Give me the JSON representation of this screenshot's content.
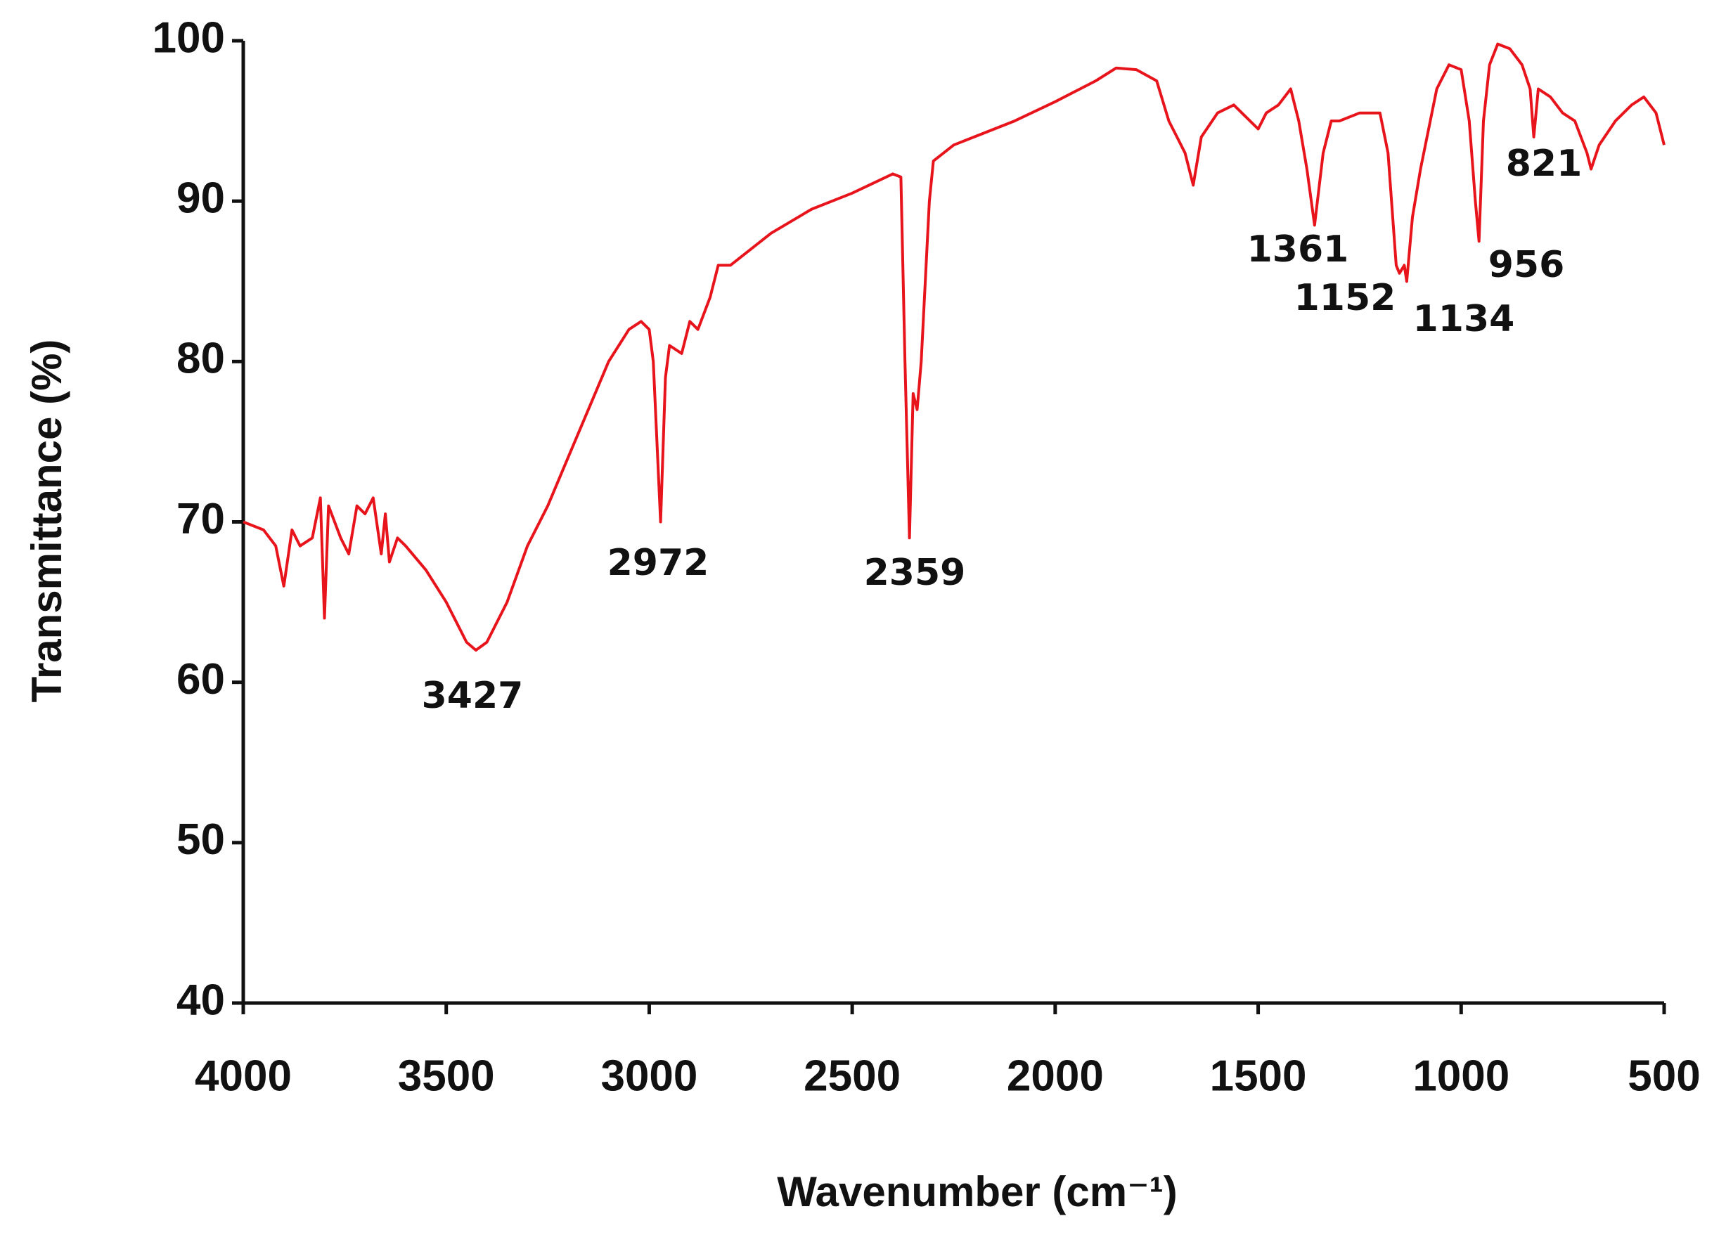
{
  "chart_data": {
    "type": "line",
    "x_label": "Wavenumber (cm⁻¹)",
    "y_label": "Transmittance (%)",
    "xlim": [
      4000,
      500
    ],
    "xticks": [
      4000,
      3500,
      3000,
      2500,
      2000,
      1500,
      1000,
      500
    ],
    "ylim": [
      40,
      100
    ],
    "yticks": [
      40,
      50,
      60,
      70,
      80,
      90,
      100
    ],
    "grid": false,
    "series": [
      {
        "color": "#e8141c",
        "x": [
          4000,
          3950,
          3920,
          3900,
          3880,
          3860,
          3830,
          3810,
          3800,
          3790,
          3760,
          3740,
          3720,
          3700,
          3680,
          3660,
          3650,
          3640,
          3620,
          3600,
          3550,
          3500,
          3450,
          3427,
          3400,
          3350,
          3300,
          3250,
          3200,
          3150,
          3100,
          3050,
          3020,
          3000,
          2990,
          2972,
          2960,
          2950,
          2920,
          2900,
          2880,
          2850,
          2830,
          2800,
          2700,
          2600,
          2500,
          2400,
          2380,
          2370,
          2359,
          2350,
          2340,
          2330,
          2310,
          2300,
          2250,
          2200,
          2100,
          2000,
          1900,
          1850,
          1800,
          1750,
          1720,
          1700,
          1680,
          1660,
          1640,
          1600,
          1560,
          1520,
          1500,
          1480,
          1450,
          1420,
          1400,
          1380,
          1361,
          1340,
          1320,
          1300,
          1250,
          1200,
          1180,
          1160,
          1152,
          1140,
          1134,
          1120,
          1100,
          1060,
          1030,
          1000,
          980,
          965,
          956,
          945,
          930,
          910,
          880,
          850,
          830,
          821,
          810,
          780,
          750,
          720,
          690,
          680,
          660,
          620,
          580,
          550,
          520,
          500
        ],
        "values": [
          70,
          69.5,
          68.5,
          66,
          69.5,
          68.5,
          69,
          71.5,
          64,
          71,
          69,
          68,
          71,
          70.5,
          71.5,
          68,
          70.5,
          67.5,
          69,
          68.5,
          67,
          65,
          62.5,
          62,
          62.5,
          65,
          68.5,
          71,
          74,
          77,
          80,
          82,
          82.5,
          82,
          80,
          70,
          79,
          81,
          80.5,
          82.5,
          82,
          84,
          86,
          86,
          88,
          89.5,
          90.5,
          91.7,
          91.5,
          80,
          69,
          78,
          77,
          80,
          90,
          92.5,
          93.5,
          94,
          95,
          96.2,
          97.5,
          98.3,
          98.2,
          97.5,
          95,
          94,
          93,
          91,
          94,
          95.5,
          96,
          95,
          94.5,
          95.5,
          96,
          97,
          95,
          92,
          88.5,
          93,
          95,
          95,
          95.5,
          95.5,
          93,
          86,
          85.5,
          86,
          85,
          89,
          92,
          97,
          98.5,
          98.2,
          95,
          90,
          87.5,
          95,
          98.5,
          99.8,
          99.5,
          98.5,
          97,
          94,
          97,
          96.5,
          95.5,
          95,
          93,
          92,
          93.5,
          95,
          96,
          96.5,
          95.5,
          93.5
        ]
      }
    ],
    "annotations": [
      "3427",
      "2972",
      "2359",
      "1361",
      "1152",
      "1134",
      "956",
      "821"
    ]
  }
}
